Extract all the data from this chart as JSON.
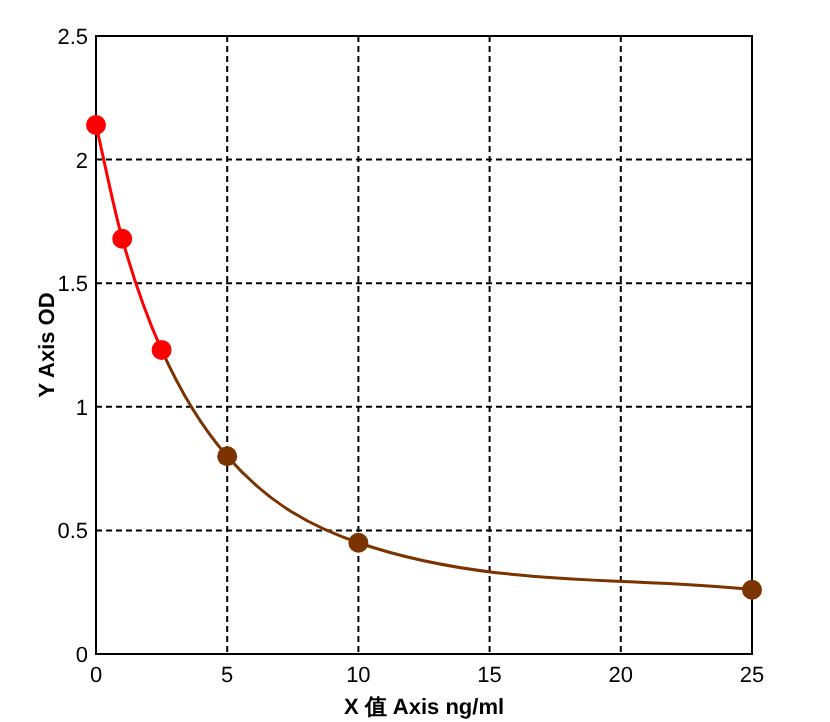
{
  "chart_data": {
    "type": "line",
    "xlabel": "X 值 Axis ng/ml",
    "ylabel": "Y Axis OD",
    "series": [
      {
        "x": [
          0,
          1,
          2.5,
          5,
          10,
          25
        ],
        "values": [
          2.14,
          1.68,
          1.23,
          0.8,
          0.45,
          0.26
        ],
        "colors": [
          "#ff0000",
          "#ff0000",
          "#ff0000",
          "#7b3300",
          "#7b3300",
          "#7b3300"
        ]
      }
    ],
    "xlim": [
      0,
      25
    ],
    "ylim": [
      0,
      2.5
    ],
    "xticks": [
      0,
      5,
      10,
      15,
      20,
      25
    ],
    "yticks": [
      0,
      0.5,
      1,
      1.5,
      2,
      2.5
    ],
    "grid": true,
    "marker": "circle",
    "line_style": "solid"
  }
}
